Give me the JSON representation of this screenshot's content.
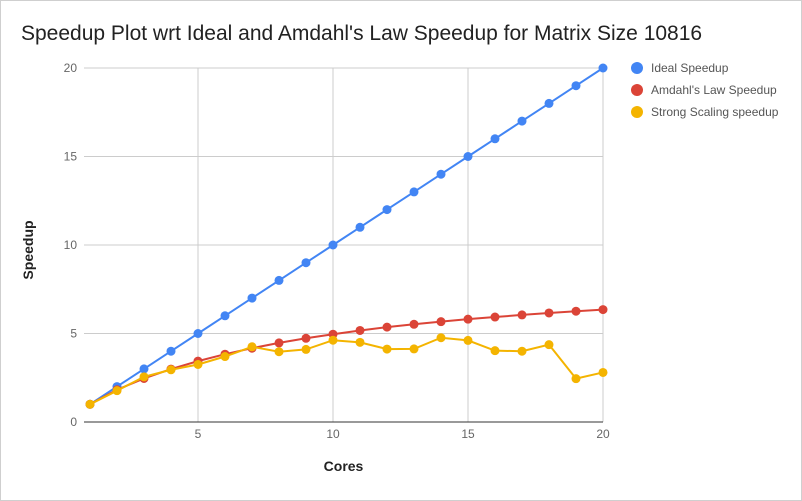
{
  "chart_data": {
    "type": "line",
    "title": "Speedup Plot wrt Ideal and Amdahl's Law Speedup for Matrix Size 10816",
    "xlabel": "Cores",
    "ylabel": "Speedup",
    "xlim": [
      1,
      20
    ],
    "ylim": [
      0,
      20
    ],
    "x_ticks": [
      5,
      10,
      15,
      20
    ],
    "y_ticks": [
      0,
      5,
      10,
      15,
      20
    ],
    "grid": true,
    "legend_position": "right",
    "x": [
      1,
      2,
      3,
      4,
      5,
      6,
      7,
      8,
      9,
      10,
      11,
      12,
      13,
      14,
      15,
      16,
      17,
      18,
      19,
      20
    ],
    "series": [
      {
        "name": "Ideal Speedup",
        "color": "#4285f4",
        "values": [
          1,
          2,
          3,
          4,
          5,
          6,
          7,
          8,
          9,
          10,
          11,
          12,
          13,
          14,
          15,
          16,
          17,
          18,
          19,
          20
        ]
      },
      {
        "name": "Amdahl's Law Speedup",
        "color": "#db4437",
        "values": [
          1,
          1.82,
          2.46,
          2.99,
          3.44,
          3.83,
          4.17,
          4.47,
          4.73,
          4.96,
          5.17,
          5.36,
          5.52,
          5.67,
          5.81,
          5.93,
          6.05,
          6.16,
          6.26,
          6.35
        ]
      },
      {
        "name": "Strong Scaling speedup",
        "color": "#f4b400",
        "values": [
          1,
          1.77,
          2.55,
          2.95,
          3.25,
          3.7,
          4.25,
          3.97,
          4.1,
          4.62,
          4.5,
          4.12,
          4.13,
          4.76,
          4.61,
          4.03,
          4.0,
          4.37,
          2.45,
          2.8
        ]
      }
    ]
  }
}
